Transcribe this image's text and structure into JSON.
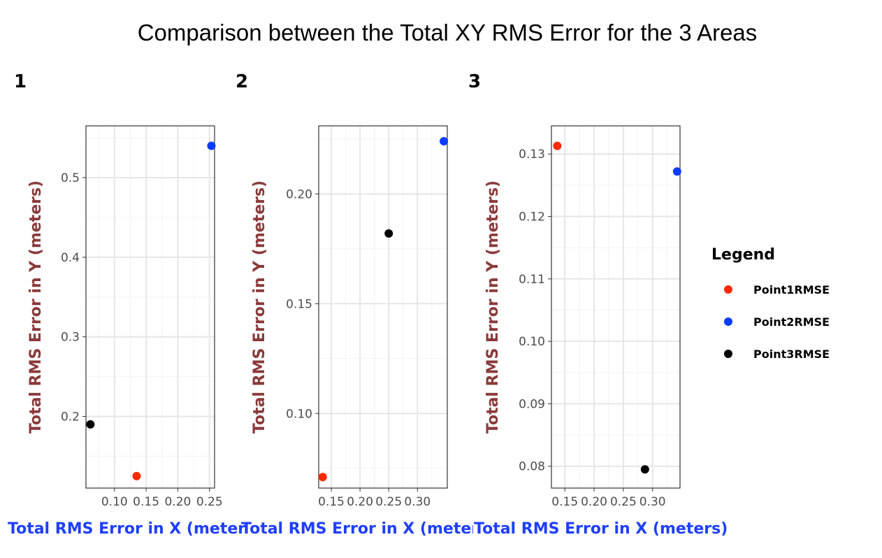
{
  "chart_data": {
    "type": "scatter",
    "title": "Comparison between the Total XY RMS Error for the 3 Areas",
    "legend": {
      "title": "Legend",
      "placement": "right",
      "entries": [
        {
          "name": "Point1RMSE",
          "color": "#ff2a00"
        },
        {
          "name": "Point2RMSE",
          "color": "#0a3cff"
        },
        {
          "name": "Point3RMSE",
          "color": "#000000"
        }
      ]
    },
    "grid": true,
    "panels": [
      {
        "tag": "1",
        "xlabel": "Total RMS Error in X (meters)",
        "ylabel": "Total RMS Error in Y (meters)",
        "xlim": [
          0.055,
          0.258
        ],
        "ylim": [
          0.11,
          0.565
        ],
        "xticks": [
          "0.10",
          "0.15",
          "0.20",
          "0.25"
        ],
        "yticks": [
          "0.2",
          "0.3",
          "0.4",
          "0.5"
        ],
        "points": [
          {
            "series": "Point1RMSE",
            "x": 0.135,
            "y": 0.125
          },
          {
            "series": "Point2RMSE",
            "x": 0.253,
            "y": 0.54
          },
          {
            "series": "Point3RMSE",
            "x": 0.062,
            "y": 0.19
          }
        ]
      },
      {
        "tag": "2",
        "xlabel": "Total RMS Error in X (meters)",
        "ylabel": "Total RMS Error in Y (meters)",
        "xlim": [
          0.128,
          0.352
        ],
        "ylim": [
          0.066,
          0.231
        ],
        "xticks": [
          "0.15",
          "0.20",
          "0.25",
          "0.30"
        ],
        "yticks": [
          "0.10",
          "0.15",
          "0.20"
        ],
        "points": [
          {
            "series": "Point1RMSE",
            "x": 0.135,
            "y": 0.071
          },
          {
            "series": "Point2RMSE",
            "x": 0.346,
            "y": 0.224
          },
          {
            "series": "Point3RMSE",
            "x": 0.25,
            "y": 0.182
          }
        ]
      },
      {
        "tag": "3",
        "xlabel": "Total RMS Error in X (meters)",
        "ylabel": "Total RMS Error in Y (meters)",
        "xlim": [
          0.127,
          0.347
        ],
        "ylim": [
          0.0765,
          0.1345
        ],
        "xticks": [
          "0.15",
          "0.20",
          "0.25",
          "0.30"
        ],
        "yticks": [
          "0.08",
          "0.09",
          "0.10",
          "0.11",
          "0.12",
          "0.13"
        ],
        "points": [
          {
            "series": "Point1RMSE",
            "x": 0.137,
            "y": 0.1313
          },
          {
            "series": "Point2RMSE",
            "x": 0.342,
            "y": 0.1272
          },
          {
            "series": "Point3RMSE",
            "x": 0.287,
            "y": 0.0795
          }
        ]
      }
    ]
  }
}
